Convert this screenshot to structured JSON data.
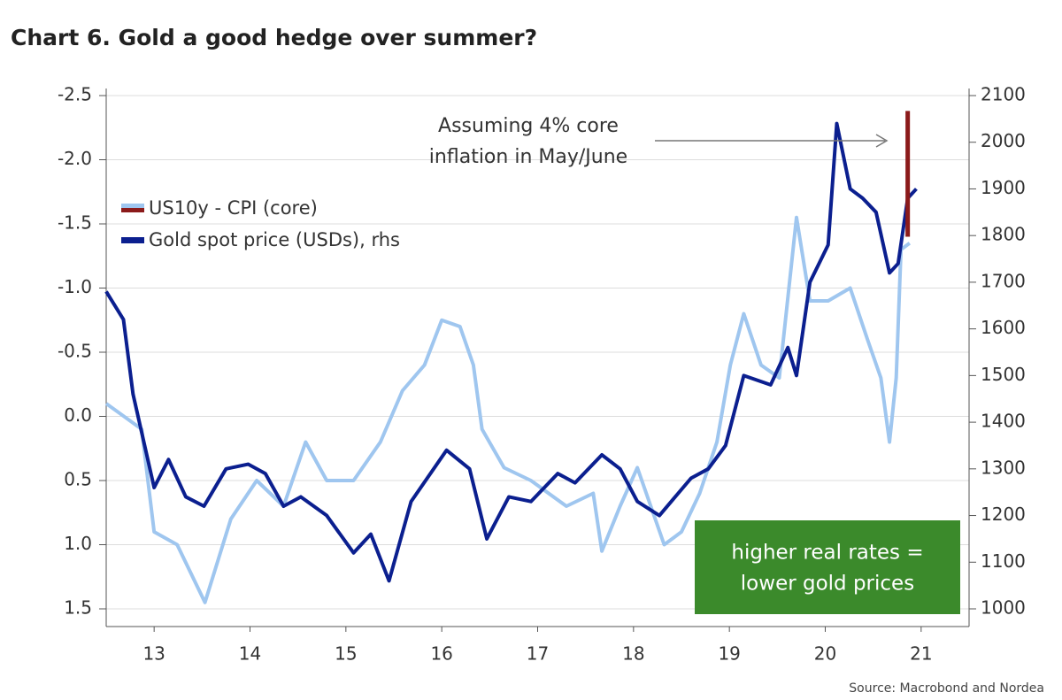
{
  "chart_data": {
    "type": "line",
    "title": "Chart 6. Gold a good hedge over summer?",
    "source": "Source: Macrobond and Nordea",
    "annotation": [
      "Assuming 4% core",
      "inflation in May/June"
    ],
    "box_text": [
      "higher real rates =",
      "lower gold prices"
    ],
    "box_color": "#3b8a2b",
    "xlim": [
      2013,
      2022
    ],
    "xticks": [
      {
        "value": 2013.5,
        "label": "13"
      },
      {
        "value": 2014.5,
        "label": "14"
      },
      {
        "value": 2015.5,
        "label": "15"
      },
      {
        "value": 2016.5,
        "label": "16"
      },
      {
        "value": 2017.5,
        "label": "17"
      },
      {
        "value": 2018.5,
        "label": "18"
      },
      {
        "value": 2019.5,
        "label": "19"
      },
      {
        "value": 2020.5,
        "label": "20"
      },
      {
        "value": 2021.5,
        "label": "21"
      }
    ],
    "ylim": [
      -2.5,
      1.5
    ],
    "invert_y": true,
    "yticks": [
      -2.5,
      {
        "value": -2,
        "label": "-2.0"
      },
      -1.5,
      {
        "value": -1,
        "label": "-1.0"
      },
      -0.5,
      {
        "value": 0,
        "label": "0.0"
      },
      0.5,
      {
        "value": 1,
        "label": "1.0"
      },
      1.5
    ],
    "y2lim": [
      1000,
      2100
    ],
    "y2ticks": [
      1000,
      1100,
      1200,
      1300,
      1400,
      1500,
      1600,
      1700,
      1800,
      1900,
      2000,
      2100
    ],
    "grid": true,
    "series": [
      {
        "name": "US10y - CPI (core)",
        "color": "#9fc6ef",
        "x": [
          2013.0,
          2013.37,
          2013.5,
          2013.74,
          2014.03,
          2014.3,
          2014.57,
          2014.85,
          2015.08,
          2015.3,
          2015.58,
          2015.86,
          2016.09,
          2016.32,
          2016.5,
          2016.69,
          2016.83,
          2016.92,
          2017.15,
          2017.43,
          2017.8,
          2018.08,
          2018.17,
          2018.36,
          2018.54,
          2018.82,
          2019.0,
          2019.19,
          2019.37,
          2019.51,
          2019.65,
          2019.83,
          2020.02,
          2020.2,
          2020.34,
          2020.53,
          2020.76,
          2020.94,
          2021.08,
          2021.17,
          2021.24,
          2021.29,
          2021.38
        ],
        "values": [
          -0.1,
          0.1,
          0.9,
          1.0,
          1.45,
          0.8,
          0.5,
          0.7,
          0.2,
          0.5,
          0.5,
          0.2,
          -0.2,
          -0.4,
          -0.75,
          -0.7,
          -0.4,
          0.1,
          0.4,
          0.5,
          0.7,
          0.6,
          1.05,
          0.7,
          0.4,
          1.0,
          0.9,
          0.6,
          0.2,
          -0.4,
          -0.8,
          -0.4,
          -0.3,
          -1.55,
          -0.9,
          -0.9,
          -1.0,
          -0.6,
          -0.3,
          0.2,
          -0.3,
          -1.3,
          -1.35
        ]
      },
      {
        "name": "Gold spot price (USDs), rhs",
        "color": "#0b1f8f",
        "axis": "y2",
        "x": [
          2013.0,
          2013.18,
          2013.28,
          2013.5,
          2013.65,
          2013.83,
          2014.02,
          2014.25,
          2014.48,
          2014.66,
          2014.85,
          2015.03,
          2015.3,
          2015.58,
          2015.76,
          2015.95,
          2016.18,
          2016.55,
          2016.79,
          2016.97,
          2017.2,
          2017.43,
          2017.71,
          2017.89,
          2018.17,
          2018.36,
          2018.54,
          2018.77,
          2019.1,
          2019.28,
          2019.46,
          2019.65,
          2019.93,
          2020.11,
          2020.2,
          2020.34,
          2020.53,
          2020.62,
          2020.76,
          2020.89,
          2021.03,
          2021.17,
          2021.26,
          2021.36,
          2021.45
        ],
        "values": [
          1680,
          1620,
          1460,
          1260,
          1320,
          1240,
          1220,
          1300,
          1310,
          1290,
          1220,
          1240,
          1200,
          1120,
          1160,
          1060,
          1230,
          1340,
          1300,
          1150,
          1240,
          1230,
          1290,
          1270,
          1330,
          1300,
          1230,
          1200,
          1280,
          1300,
          1350,
          1500,
          1480,
          1560,
          1500,
          1700,
          1780,
          2040,
          1900,
          1880,
          1850,
          1720,
          1740,
          1880,
          1900
        ]
      }
    ],
    "projection": {
      "x": 2021.36,
      "from": -1.4,
      "to": -2.38,
      "color": "#8b1a1a"
    }
  }
}
